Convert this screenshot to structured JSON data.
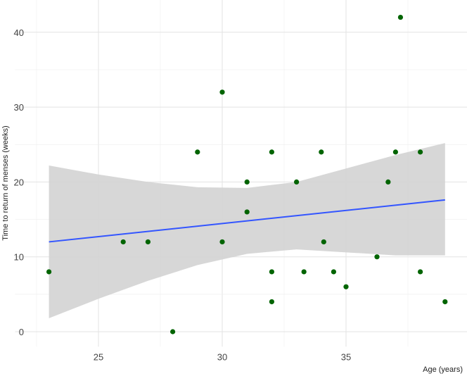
{
  "chart_data": {
    "type": "scatter",
    "title": "",
    "xlabel": "Age (years)",
    "ylabel": "Time to return of menses (weeks)",
    "xlim": [
      22.2,
      39.3
    ],
    "ylim": [
      -2,
      44
    ],
    "xticks": [
      25,
      30,
      35
    ],
    "yticks": [
      0,
      10,
      20,
      30,
      40
    ],
    "grid": true,
    "point_color": "#006400",
    "line_color": "#3355ff",
    "band_color": "#d3d3d3",
    "points": [
      [
        23,
        8
      ],
      [
        26,
        12
      ],
      [
        27,
        12
      ],
      [
        28,
        0
      ],
      [
        29,
        24
      ],
      [
        30,
        32
      ],
      [
        30,
        12
      ],
      [
        31,
        20
      ],
      [
        31,
        16
      ],
      [
        32,
        24
      ],
      [
        32,
        8
      ],
      [
        32,
        4
      ],
      [
        33,
        20
      ],
      [
        33.3,
        8
      ],
      [
        34,
        24
      ],
      [
        34.1,
        12
      ],
      [
        34.5,
        8
      ],
      [
        35,
        6
      ],
      [
        36.25,
        10
      ],
      [
        36.7,
        20
      ],
      [
        37,
        24
      ],
      [
        37.2,
        42
      ],
      [
        38,
        24
      ],
      [
        38,
        8
      ],
      [
        39,
        4
      ]
    ],
    "fit_line": {
      "x": [
        23,
        39
      ],
      "y": [
        12,
        17.6
      ]
    },
    "confidence_band": {
      "x": [
        23,
        25,
        27,
        29,
        31,
        33,
        35,
        37,
        39
      ],
      "lower": [
        1.8,
        4.4,
        6.8,
        8.9,
        10.4,
        11.0,
        10.6,
        10.2,
        10.2
      ],
      "upper": [
        22.2,
        21.0,
        20.0,
        19.3,
        19.2,
        20.0,
        21.8,
        23.6,
        25.2
      ]
    }
  }
}
